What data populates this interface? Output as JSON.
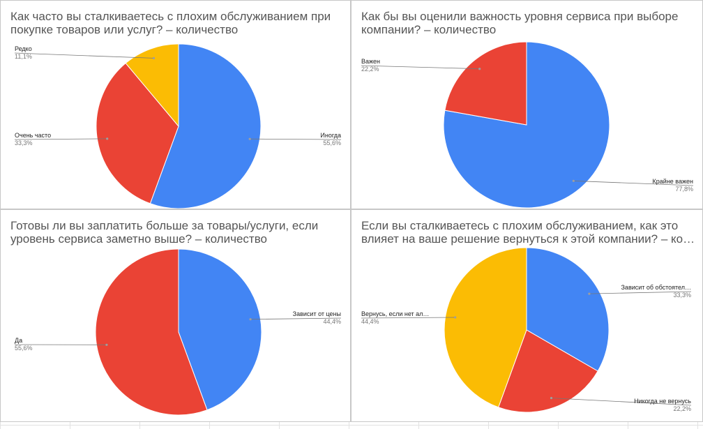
{
  "chart_data": [
    {
      "type": "pie",
      "title": "Как часто вы сталкиваетесь с плохим обслуживанием при\nпокупке товаров или услуг? – количество",
      "series": [
        {
          "values": [
            55.6,
            33.3,
            11.1
          ]
        }
      ],
      "categories": [
        "Иногда",
        "Очень часто",
        "Редко"
      ],
      "labels": [
        "55,6%",
        "33,3%",
        "11,1%"
      ],
      "colors": [
        "#4285f4",
        "#ea4335",
        "#fbbc04"
      ]
    },
    {
      "type": "pie",
      "title": "Как бы вы оценили важность уровня сервиса при выборе\nкомпании? – количество",
      "series": [
        {
          "values": [
            77.8,
            22.2
          ]
        }
      ],
      "categories": [
        "Крайне важен",
        "Важен"
      ],
      "labels": [
        "77,8%",
        "22,2%"
      ],
      "colors": [
        "#4285f4",
        "#ea4335"
      ]
    },
    {
      "type": "pie",
      "title": "Готовы ли вы заплатить больше за товары/услуги, если\nуровень сервиса заметно выше? – количество",
      "series": [
        {
          "values": [
            44.4,
            55.6
          ]
        }
      ],
      "categories": [
        "Зависит от цены",
        "Да"
      ],
      "labels": [
        "44,4%",
        "55,6%"
      ],
      "colors": [
        "#4285f4",
        "#ea4335"
      ]
    },
    {
      "type": "pie",
      "title": "Если вы сталкиваетесь с плохим обслуживанием, как это\nвлияет на ваше решение вернуться к этой компании? – ко…",
      "series": [
        {
          "values": [
            33.3,
            22.2,
            44.4
          ]
        }
      ],
      "categories": [
        "Зависит об обстоятел…",
        "Никогда не вернусь",
        "Вернусь, если нет ал…"
      ],
      "labels": [
        "33,3%",
        "22,2%",
        "44,4%"
      ],
      "colors": [
        "#4285f4",
        "#ea4335",
        "#fbbc04"
      ]
    }
  ]
}
